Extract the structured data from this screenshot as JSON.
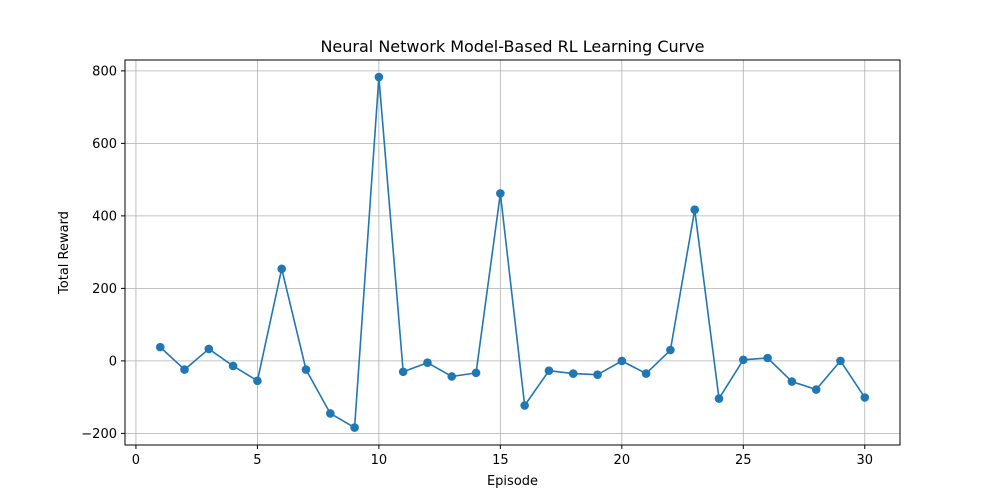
{
  "chart_data": {
    "type": "line",
    "title": "Neural Network Model-Based RL Learning Curve",
    "xlabel": "Episode",
    "ylabel": "Total Reward",
    "xlim": [
      -0.45,
      31.45
    ],
    "ylim": [
      -232,
      830
    ],
    "xticks": [
      0,
      5,
      10,
      15,
      20,
      25,
      30
    ],
    "yticks": [
      -200,
      0,
      200,
      400,
      600,
      800
    ],
    "grid": true,
    "series": [
      {
        "color": "#1f77b4",
        "marker": "circle",
        "x": [
          1,
          2,
          3,
          4,
          5,
          6,
          7,
          8,
          9,
          10,
          11,
          12,
          13,
          14,
          15,
          16,
          17,
          18,
          19,
          20,
          21,
          22,
          23,
          24,
          25,
          26,
          27,
          28,
          29,
          30
        ],
        "y": [
          38,
          -24,
          33,
          -14,
          -55,
          254,
          -24,
          -145,
          -184,
          783,
          -30,
          -5,
          -43,
          -33,
          462,
          -123,
          -27,
          -35,
          -38,
          0,
          -35,
          30,
          417,
          -104,
          3,
          8,
          -57,
          -79,
          0,
          -101
        ]
      }
    ]
  }
}
